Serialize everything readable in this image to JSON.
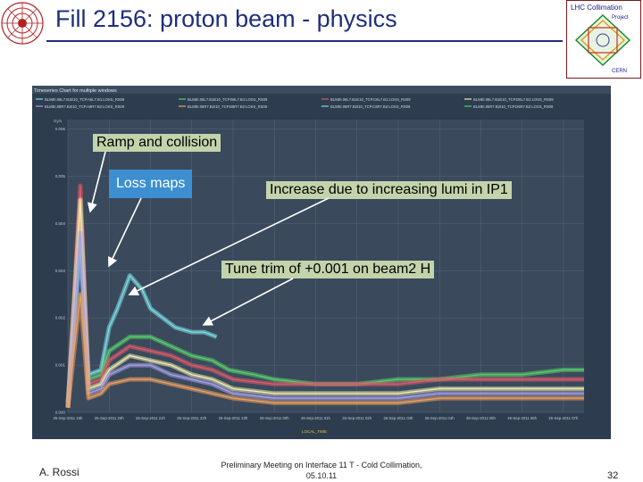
{
  "slide": {
    "title": "Fill 2156: proton beam - physics",
    "author": "A. Rossi",
    "meeting": "Preliminary Meeting on Interface 11 T - Cold Collimation, 05.10.11",
    "page_number": "32",
    "logo_right_text": [
      "LHC Collimation",
      "Project",
      "CERN"
    ]
  },
  "annotations": {
    "ramp": "Ramp and collision",
    "loss_maps": "Loss maps",
    "increase": "Increase due to increasing lumi in IP1",
    "tune": "Tune trim of +0.001 on beam2 H"
  },
  "colors": {
    "title": "#1f2f7a",
    "chart_bg": "#2d3d4f",
    "plot_bg": "#3a4a5c",
    "callout_bg": "#c3d3ab",
    "lossmaps_bg": "#3d8fd1"
  },
  "chart_data": {
    "type": "line",
    "title": "Timeseries Chart for multiple windows",
    "xlabel": "LOCAL_TIME",
    "ylabel": "Gy/s",
    "x_ticks": [
      "25-Sep-2011 19h",
      "25-Sep-2011 20h",
      "25-Sep-2011 21h",
      "25-Sep-2011 22h",
      "25-Sep-2011 23h",
      "26-Sep-2011 00h",
      "26-Sep-2011 01h",
      "26-Sep-2011 02h",
      "26-Sep-2011 03h",
      "26-Sep-2011 04h",
      "26-Sep-2011 05h",
      "26-Sep-2011 06h",
      "26-Sep-2011 07h"
    ],
    "y_ticks": [
      "0.000",
      "0.001",
      "0.002",
      "0.003",
      "0.004",
      "0.005",
      "0.006"
    ],
    "xlim": [
      0,
      12.5
    ],
    "ylim": [
      0,
      0.0062
    ],
    "grid": true,
    "legend_position": "top",
    "legend": [
      "BLMEI.06L7.B1E10_TCP.A6L7.B1:LOSS_RS09",
      "BLMEI.06L7.B1E10_TCP.B6L7.B1:LOSS_RS09",
      "BLMEI.06L7.B1E10_TCP.C6L7.B1:LOSS_RS09",
      "BLMEI.06L7.B1E10_TCP.D6L7.B1:LOSS_RS09",
      "BLMEI.06R7.B2I10_TCP.A6R7.B2:LOSS_RS09",
      "BLMEI.06R7.B2I10_TCP.B6R7.B2:LOSS_RS09",
      "BLMEI.06R7.B2I10_TCP.C6R7.B2:LOSS_RS09",
      "BLMEI.06R7.B2I10_TCP.D6R7.B2:LOSS_RS09"
    ],
    "series": [
      {
        "color": "#7ee0e8",
        "x": [
          0,
          0.3,
          0.5,
          0.8,
          1,
          1.2,
          1.5,
          1.8,
          2,
          2.3,
          2.6,
          3,
          3.3,
          3.6
        ],
        "y": [
          0.0002,
          0.0035,
          0.0008,
          0.0009,
          0.0018,
          0.0022,
          0.0029,
          0.0026,
          0.0022,
          0.002,
          0.0018,
          0.0017,
          0.0017,
          0.0016
        ]
      },
      {
        "color": "#58d06a",
        "x": [
          0,
          0.3,
          0.5,
          0.8,
          1,
          1.5,
          2,
          2.5,
          3,
          3.5,
          3.9,
          4.5,
          5,
          6,
          7,
          8,
          9,
          10,
          11,
          12,
          12.5
        ],
        "y": [
          0.0002,
          0.0042,
          0.0007,
          0.0008,
          0.0013,
          0.0016,
          0.0016,
          0.0014,
          0.0012,
          0.0011,
          0.0009,
          0.0008,
          0.0007,
          0.0006,
          0.0006,
          0.0007,
          0.0007,
          0.0008,
          0.0008,
          0.0009,
          0.0009
        ]
      },
      {
        "color": "#e05a6a",
        "x": [
          0,
          0.3,
          0.5,
          0.8,
          1,
          1.5,
          2,
          2.5,
          3,
          3.5,
          4,
          5,
          6,
          7,
          8,
          9,
          10,
          11,
          12,
          12.5
        ],
        "y": [
          0.0001,
          0.0048,
          0.0006,
          0.0007,
          0.0011,
          0.0014,
          0.0013,
          0.0012,
          0.001,
          0.0009,
          0.0007,
          0.0006,
          0.0006,
          0.0006,
          0.0006,
          0.0007,
          0.0007,
          0.0007,
          0.0007,
          0.0007
        ]
      },
      {
        "color": "#f2efb0",
        "x": [
          0,
          0.3,
          0.5,
          0.8,
          1,
          1.5,
          2,
          2.5,
          3,
          3.5,
          4,
          5,
          6,
          7,
          8,
          9,
          10,
          11,
          12,
          12.5
        ],
        "y": [
          0.0001,
          0.0045,
          0.0005,
          0.0006,
          0.0009,
          0.0012,
          0.0011,
          0.001,
          0.0008,
          0.0007,
          0.0005,
          0.0004,
          0.0004,
          0.0004,
          0.0004,
          0.0005,
          0.0005,
          0.0005,
          0.0005,
          0.0005
        ]
      },
      {
        "color": "#a8a0e8",
        "x": [
          0,
          0.3,
          0.5,
          0.8,
          1,
          1.5,
          2,
          2.5,
          3,
          3.5,
          4,
          5,
          6,
          7,
          8,
          9,
          10,
          11,
          12,
          12.5
        ],
        "y": [
          0.0001,
          0.0038,
          0.0004,
          0.0005,
          0.0008,
          0.001,
          0.001,
          0.0008,
          0.0007,
          0.0006,
          0.0004,
          0.0003,
          0.0003,
          0.0003,
          0.0003,
          0.0004,
          0.0004,
          0.0004,
          0.0004,
          0.0004
        ]
      },
      {
        "color": "#f0a060",
        "x": [
          0,
          0.3,
          0.5,
          0.8,
          1,
          1.5,
          2,
          2.5,
          3,
          3.5,
          4,
          5,
          6,
          7,
          8,
          9,
          10,
          11,
          12,
          12.5
        ],
        "y": [
          0.0001,
          0.0025,
          0.0003,
          0.0004,
          0.0006,
          0.0007,
          0.0007,
          0.0006,
          0.0005,
          0.0004,
          0.0003,
          0.0002,
          0.0002,
          0.0002,
          0.0002,
          0.0003,
          0.0003,
          0.0003,
          0.0003,
          0.0003
        ]
      }
    ]
  }
}
